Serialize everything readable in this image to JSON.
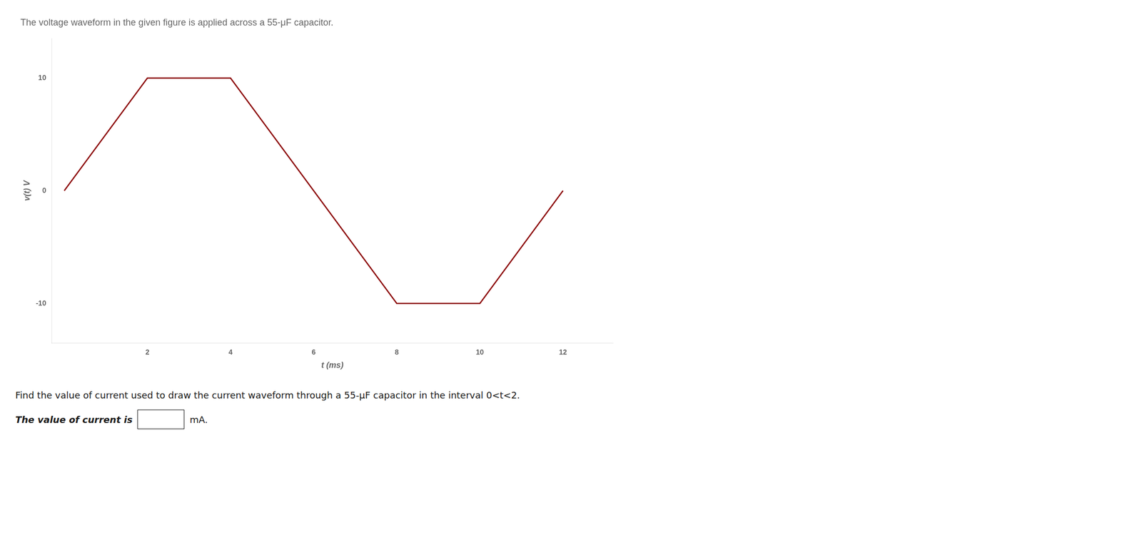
{
  "chart_data": {
    "type": "line",
    "title": "The voltage waveform in the given figure is applied across a 55-μF capacitor.",
    "xlabel": "t (ms)",
    "ylabel": "v(t) V",
    "x": [
      0,
      2,
      4,
      6,
      8,
      10,
      12
    ],
    "values": [
      0,
      10,
      10,
      0,
      -10,
      -10,
      0
    ],
    "color": "#8B0000",
    "xlim": [
      -0.3,
      13.2
    ],
    "ylim": [
      -13.5,
      13.5
    ],
    "xticks": [
      2,
      4,
      6,
      8,
      10,
      12
    ],
    "yticks": [
      -10,
      0,
      10
    ],
    "grid": false,
    "annotations": [
      "Find the value of current used to draw the current waveform through a 55-μF capacitor in the interval 0<t<2.",
      "The value of current is",
      "mA."
    ]
  }
}
